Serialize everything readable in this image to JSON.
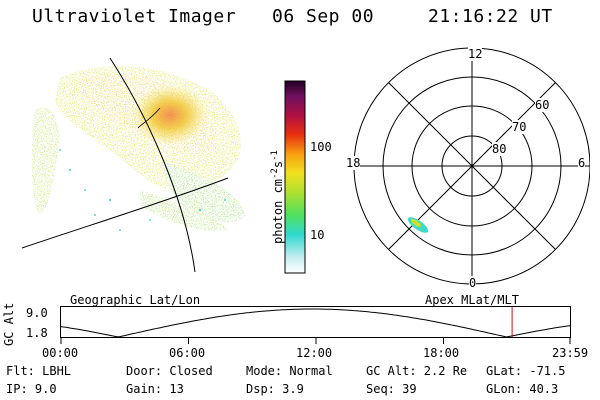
{
  "header": {
    "title": "Ultraviolet Imager",
    "date": "06 Sep 00",
    "time": "21:16:22 UT"
  },
  "colorbar": {
    "unit_label": "photon cm",
    "exp1": "-2",
    "unit_mid": "s",
    "exp2": "-1",
    "tick_100": "100",
    "tick_10": "10"
  },
  "polar_plot": {
    "mlt_labels": {
      "top": "12",
      "bottom": "0",
      "left": "18",
      "right": "6"
    },
    "lat_labels": [
      "60",
      "70",
      "80"
    ]
  },
  "timeline": {
    "left_title": "Geographic Lat/Lon",
    "right_title": "Apex  MLat/MLT",
    "axis_title": "GC Alt",
    "y_top": "9.0",
    "y_bottom": "1.8",
    "ticks": [
      "00:00",
      "06:00",
      "12:00",
      "18:00",
      "23:59"
    ],
    "marker_hour": 21.27
  },
  "info": {
    "flt": "Flt: LBHL",
    "ip": "IP:  9.0",
    "door": "Door: Closed",
    "gain": "Gain: 13",
    "mode": "Mode: Normal",
    "dsp": "Dsp:    3.9",
    "gcalt": "GC Alt: 2.2 Re",
    "seq": "Seq: 39",
    "glat": "GLat: -71.5",
    "glon": "GLon:  40.3"
  },
  "colors": {
    "accent_marker": "#d01010"
  }
}
